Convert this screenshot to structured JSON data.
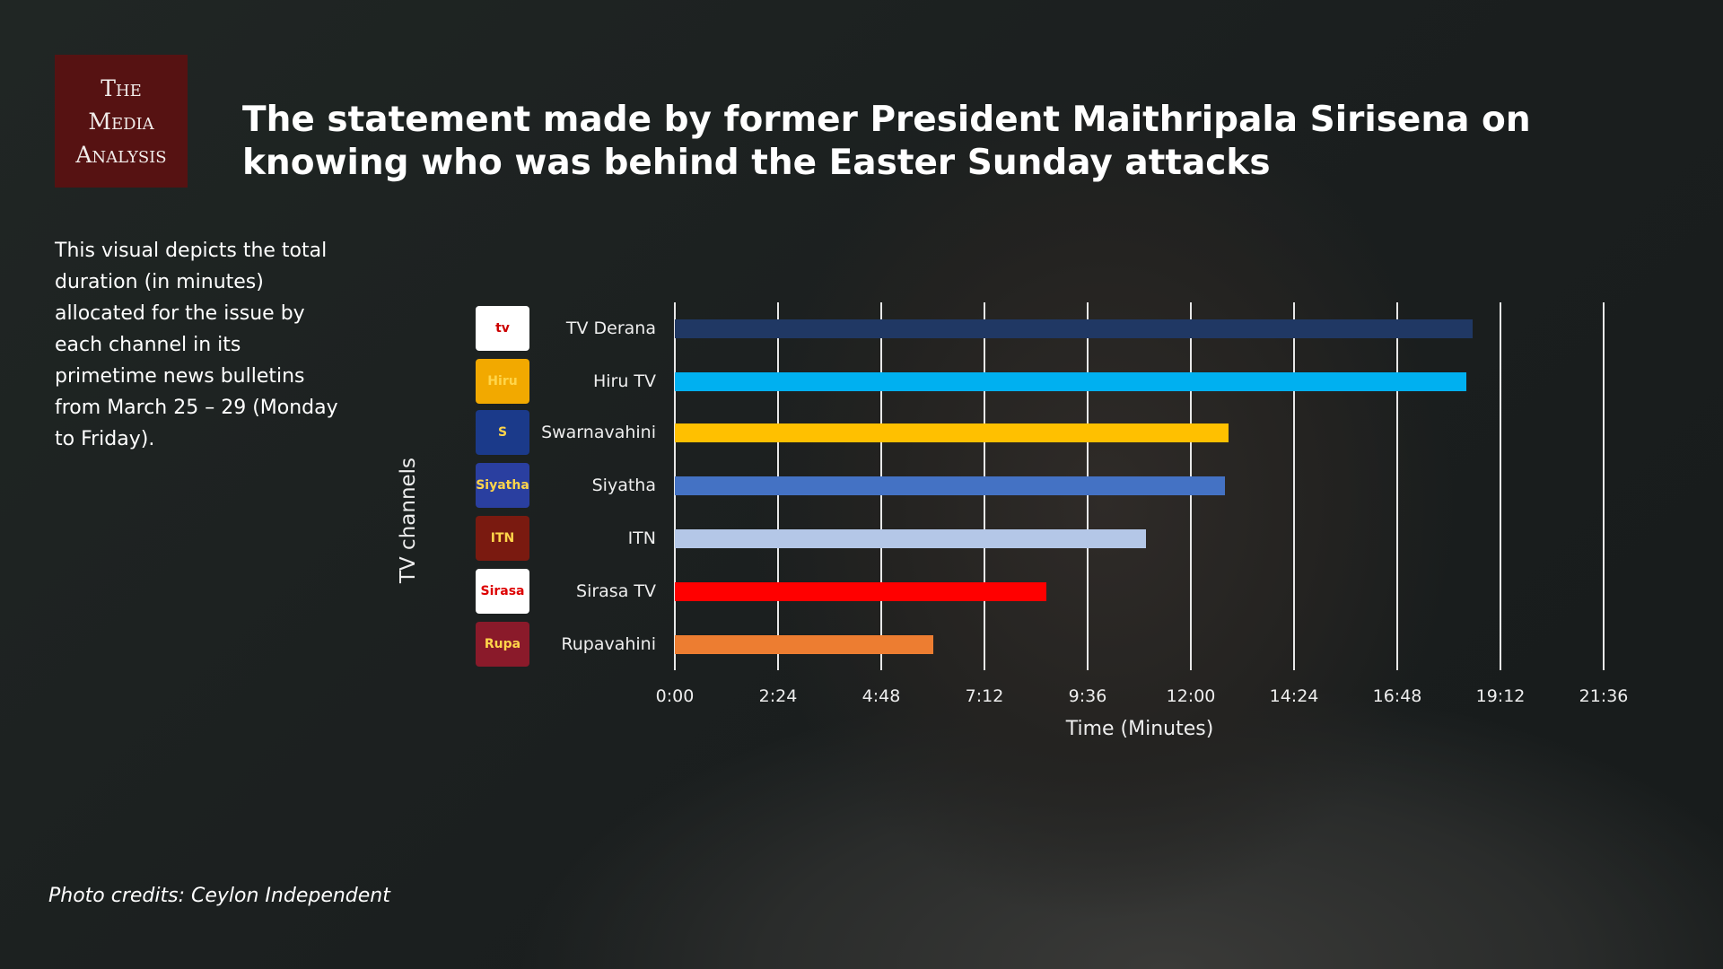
{
  "logo": {
    "line1": "The",
    "line2": "Media",
    "line3": "Analysis"
  },
  "title": "The statement made by former President Maithripala Sirisena on knowing who was behind the Easter Sunday attacks",
  "description": "This visual depicts the total duration (in minutes) allocated for the issue by each channel in its primetime news bulletins from March 25 – 29 (Monday to Friday).",
  "credits": "Photo credits: Ceylon Independent",
  "chart_data": {
    "type": "bar",
    "orientation": "horizontal",
    "title": "",
    "xlabel": "Time (Minutes)",
    "ylabel": "TV channels",
    "categories": [
      "TV Derana",
      "Hiru TV",
      "Swarnavahini",
      "Siyatha",
      "ITN",
      "Sirasa TV",
      "Rupavahini"
    ],
    "values": [
      18.55,
      18.4,
      12.87,
      12.79,
      10.95,
      8.65,
      6.0
    ],
    "colors": [
      "#203864",
      "#00b0f0",
      "#ffc000",
      "#4472c4",
      "#b4c7e7",
      "#ff0000",
      "#ed7d31"
    ],
    "logo_text": [
      "tv",
      "Hiru",
      "S",
      "Siyatha",
      "ITN",
      "Sirasa",
      "Rupa"
    ],
    "logo_colors": [
      "#ffffff",
      "#f2a900",
      "#1b3a8a",
      "#2a3fa0",
      "#7a1a10",
      "#ffffff",
      "#8a1a2a"
    ],
    "xticks": [
      "0:00",
      "2:24",
      "4:48",
      "7:12",
      "9:36",
      "12:00",
      "14:24",
      "16:48",
      "19:12",
      "21:36"
    ],
    "xlim": [
      0,
      21.6
    ],
    "grid": true
  }
}
